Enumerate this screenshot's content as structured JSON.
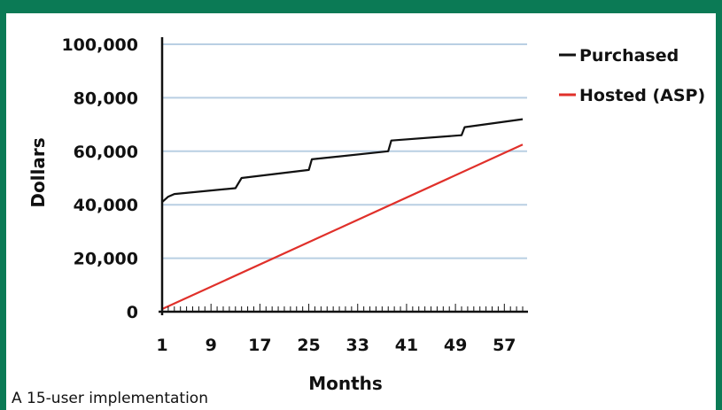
{
  "caption": "A 15-user implementation",
  "colors": {
    "frame": "#0b7a55",
    "grid": "#b9cfe3",
    "purchased": "#111111",
    "hosted": "#e0302a"
  },
  "chart_data": {
    "type": "line",
    "title": "",
    "xlabel": "Months",
    "ylabel": "Dollars",
    "xlim": [
      1,
      60
    ],
    "ylim": [
      0,
      100000
    ],
    "xticks": [
      1,
      9,
      17,
      25,
      33,
      41,
      49,
      57
    ],
    "xtick_labels": [
      "1",
      "9",
      "17",
      "25",
      "33",
      "41",
      "49",
      "57"
    ],
    "yticks": [
      0,
      20000,
      40000,
      60000,
      80000,
      100000
    ],
    "ytick_labels": [
      "0",
      "20,000",
      "40,000",
      "60,000",
      "80,000",
      "100,000"
    ],
    "grid": true,
    "legend": "right",
    "series": [
      {
        "name": "Purchased",
        "color": "#111111",
        "x": [
          1,
          2,
          3,
          13,
          14,
          25,
          25.5,
          38,
          38.5,
          50,
          50.5,
          60
        ],
        "y": [
          41000,
          43000,
          44000,
          46200,
          50000,
          53000,
          57000,
          60000,
          64000,
          66000,
          69000,
          72000
        ]
      },
      {
        "name": "Hosted (ASP)",
        "color": "#e0302a",
        "x": [
          1,
          60
        ],
        "y": [
          1000,
          62500
        ]
      }
    ]
  }
}
